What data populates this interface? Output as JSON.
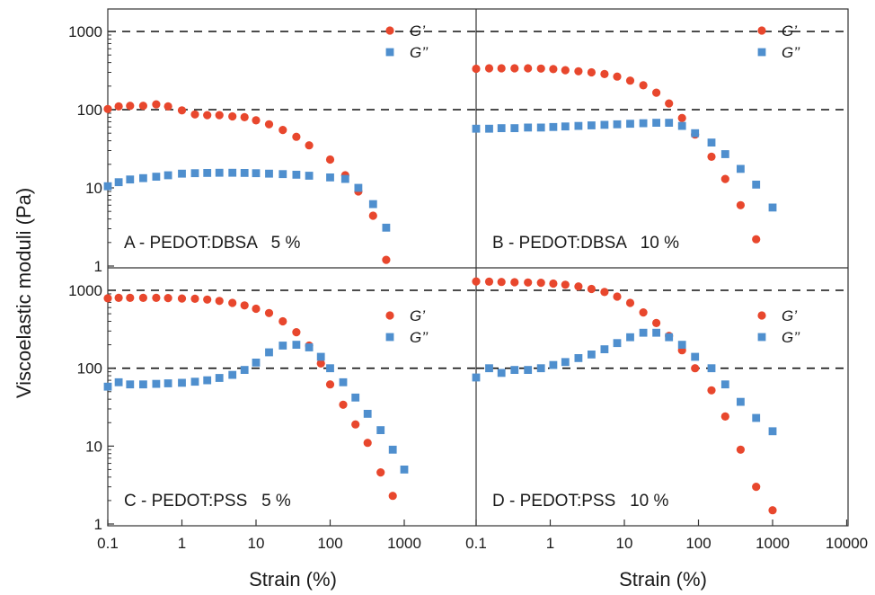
{
  "figure": {
    "y_axis_label": "Viscoelastic moduli (Pa)",
    "x_axis_label": "Strain (%)"
  },
  "colors": {
    "g_prime": "#e8472d",
    "g_double_prime": "#4f8fce",
    "reference_line": "#111111"
  },
  "ticks": {
    "y": [
      "1",
      "10",
      "100",
      "1000"
    ],
    "x_left": [
      "0.1",
      "1",
      "10",
      "100",
      "1000"
    ],
    "x_right": [
      "0.1",
      "1",
      "10",
      "100",
      "1000",
      "10000"
    ]
  },
  "chart_data": [
    {
      "type": "scatter",
      "panel_label": "A - PEDOT:DBSA   5 %",
      "x_scale": "log",
      "y_scale": "log",
      "xlim": [
        0.1,
        1000
      ],
      "ylim": [
        1,
        2000
      ],
      "reference_lines_y": [
        100,
        1000
      ],
      "legend": "top-right",
      "series": [
        {
          "name": "G’",
          "marker": "circle",
          "x": [
            0.1,
            0.14,
            0.2,
            0.3,
            0.45,
            0.65,
            1,
            1.5,
            2.2,
            3.2,
            4.8,
            7,
            10,
            15,
            23,
            35,
            52,
            100,
            160,
            240,
            380,
            570
          ],
          "y": [
            102,
            110,
            112,
            112,
            117,
            110,
            98,
            87,
            85,
            85,
            82,
            80,
            73,
            65,
            55,
            45,
            35,
            23,
            14.5,
            9,
            4.4,
            1.2
          ]
        },
        {
          "name": "G’’",
          "marker": "square",
          "x": [
            0.1,
            0.14,
            0.2,
            0.3,
            0.45,
            0.65,
            1,
            1.5,
            2.2,
            3.2,
            4.8,
            7,
            10,
            15,
            23,
            35,
            52,
            100,
            160,
            240,
            380,
            570
          ],
          "y": [
            10.5,
            11.8,
            12.8,
            13.3,
            13.9,
            14.5,
            15.2,
            15.4,
            15.5,
            15.6,
            15.6,
            15.5,
            15.4,
            15.2,
            15,
            14.7,
            14.3,
            13.6,
            13,
            10,
            6.2,
            3.1
          ]
        }
      ]
    },
    {
      "type": "scatter",
      "panel_label": "B - PEDOT:DBSA   10 %",
      "x_scale": "log",
      "y_scale": "log",
      "xlim": [
        0.1,
        10000
      ],
      "ylim": [
        1,
        2000
      ],
      "reference_lines_y": [
        100,
        1000
      ],
      "legend": "top-right",
      "series": [
        {
          "name": "G’",
          "marker": "circle",
          "x": [
            0.1,
            0.15,
            0.22,
            0.33,
            0.5,
            0.75,
            1.1,
            1.6,
            2.4,
            3.6,
            5.4,
            8,
            12,
            18,
            27,
            40,
            60,
            90,
            150,
            230,
            370,
            600
          ],
          "y": [
            333,
            338,
            338,
            338,
            338,
            335,
            330,
            320,
            310,
            300,
            285,
            265,
            235,
            205,
            165,
            120,
            78,
            48,
            25,
            13,
            6,
            2.2
          ]
        },
        {
          "name": "G’’",
          "marker": "square",
          "x": [
            0.1,
            0.15,
            0.22,
            0.33,
            0.5,
            0.75,
            1.1,
            1.6,
            2.4,
            3.6,
            5.4,
            8,
            12,
            18,
            27,
            40,
            60,
            90,
            150,
            230,
            370,
            600,
            1000
          ],
          "y": [
            57,
            57,
            58,
            58,
            59,
            59,
            60,
            61,
            62,
            63,
            64,
            65,
            66,
            67,
            68,
            68,
            62,
            50,
            38,
            27,
            17.5,
            11,
            5.6
          ]
        }
      ]
    },
    {
      "type": "scatter",
      "panel_label": "C - PEDOT:PSS   5 %",
      "x_scale": "log",
      "y_scale": "log",
      "xlim": [
        0.1,
        1000
      ],
      "ylim": [
        1,
        2000
      ],
      "reference_lines_y": [
        100,
        1000
      ],
      "legend": "top-right",
      "series": [
        {
          "name": "G’",
          "marker": "circle",
          "x": [
            0.1,
            0.14,
            0.2,
            0.3,
            0.45,
            0.65,
            1,
            1.5,
            2.2,
            3.2,
            4.8,
            7,
            10,
            15,
            23,
            35,
            52,
            75,
            100,
            150,
            220,
            320,
            480,
            700
          ],
          "y": [
            790,
            800,
            800,
            800,
            800,
            795,
            785,
            780,
            760,
            730,
            690,
            640,
            580,
            510,
            400,
            290,
            195,
            115,
            62,
            34,
            19,
            11,
            4.6,
            2.3
          ]
        },
        {
          "name": "G’’",
          "marker": "square",
          "x": [
            0.1,
            0.14,
            0.2,
            0.3,
            0.45,
            0.65,
            1,
            1.5,
            2.2,
            3.2,
            4.8,
            7,
            10,
            15,
            23,
            35,
            52,
            75,
            100,
            150,
            220,
            320,
            480,
            700,
            1000
          ],
          "y": [
            58,
            66,
            62,
            62,
            63,
            64,
            65,
            67,
            70,
            75,
            82,
            95,
            118,
            160,
            195,
            200,
            185,
            140,
            100,
            66,
            42,
            26,
            16,
            9,
            5
          ]
        }
      ]
    },
    {
      "type": "scatter",
      "panel_label": "D - PEDOT:PSS   10 %",
      "x_scale": "log",
      "y_scale": "log",
      "xlim": [
        0.1,
        10000
      ],
      "ylim": [
        1,
        2000
      ],
      "reference_lines_y": [
        100,
        1000
      ],
      "legend": "top-right",
      "series": [
        {
          "name": "G’",
          "marker": "circle",
          "x": [
            0.1,
            0.15,
            0.22,
            0.33,
            0.5,
            0.75,
            1.1,
            1.6,
            2.4,
            3.6,
            5.4,
            8,
            12,
            18,
            27,
            40,
            60,
            90,
            150,
            230,
            370,
            600,
            1000
          ],
          "y": [
            1300,
            1290,
            1280,
            1270,
            1260,
            1250,
            1220,
            1180,
            1120,
            1040,
            950,
            830,
            690,
            520,
            380,
            260,
            170,
            100,
            52,
            24,
            9,
            3,
            1.5
          ]
        },
        {
          "name": "G’’",
          "marker": "square",
          "x": [
            0.1,
            0.15,
            0.22,
            0.33,
            0.5,
            0.75,
            1.1,
            1.6,
            2.4,
            3.6,
            5.4,
            8,
            12,
            18,
            27,
            40,
            60,
            90,
            150,
            230,
            370,
            600,
            1000
          ],
          "y": [
            76,
            100,
            87,
            95,
            95,
            100,
            110,
            120,
            135,
            150,
            175,
            210,
            250,
            285,
            285,
            250,
            200,
            140,
            100,
            62,
            37,
            23,
            15.5
          ]
        }
      ]
    }
  ]
}
